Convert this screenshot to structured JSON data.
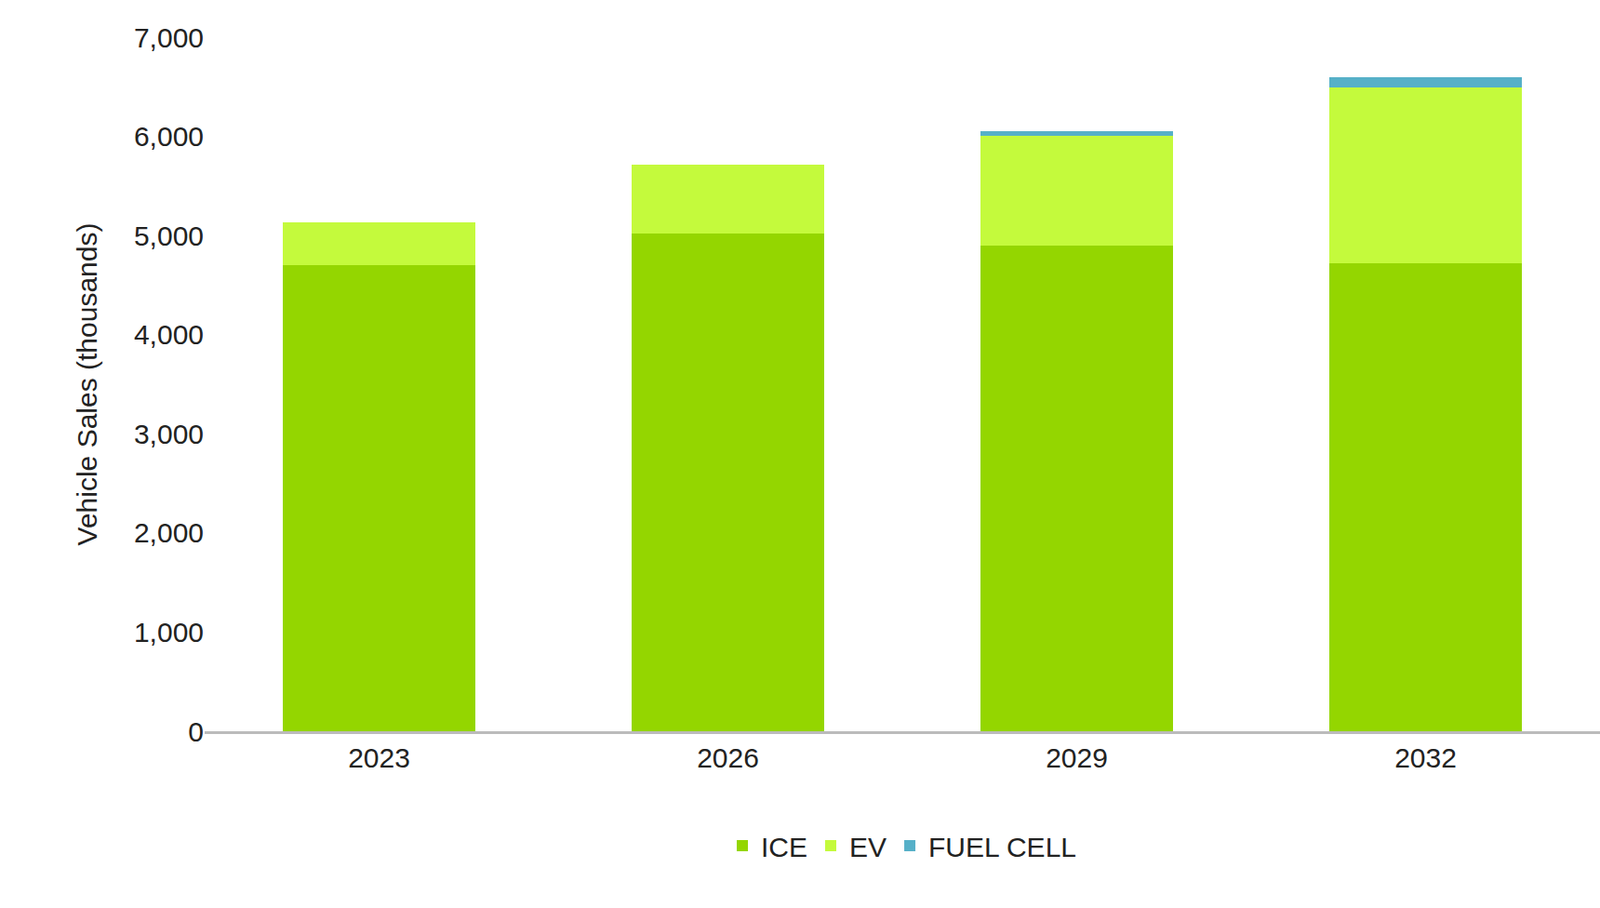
{
  "chart_data": {
    "type": "bar",
    "stacked": true,
    "y_label": "Vehicle Sales (thousands)",
    "categories": [
      "2023",
      "2026",
      "2029",
      "2032"
    ],
    "series": [
      {
        "name": "ICE",
        "color": "#94d600",
        "values": [
          4700,
          5020,
          4900,
          4720
        ]
      },
      {
        "name": "EV",
        "color": "#c4fa3c",
        "values": [
          430,
          690,
          1110,
          1770
        ]
      },
      {
        "name": "FUEL CELL",
        "color": "#56b0c8",
        "values": [
          0,
          0,
          40,
          110
        ]
      }
    ],
    "ylim": [
      0,
      7000
    ],
    "yticks": [
      0,
      {
        "value": 1000,
        "label": "1,000"
      },
      {
        "value": 2000,
        "label": "2,000"
      },
      {
        "value": 3000,
        "label": "3,000"
      },
      {
        "value": 4000,
        "label": "4,000"
      },
      {
        "value": 5000,
        "label": "5,000"
      },
      {
        "value": 6000,
        "label": "6,000"
      },
      {
        "value": 7000,
        "label": "7,000"
      }
    ],
    "grid": false,
    "legend": "bottom"
  }
}
